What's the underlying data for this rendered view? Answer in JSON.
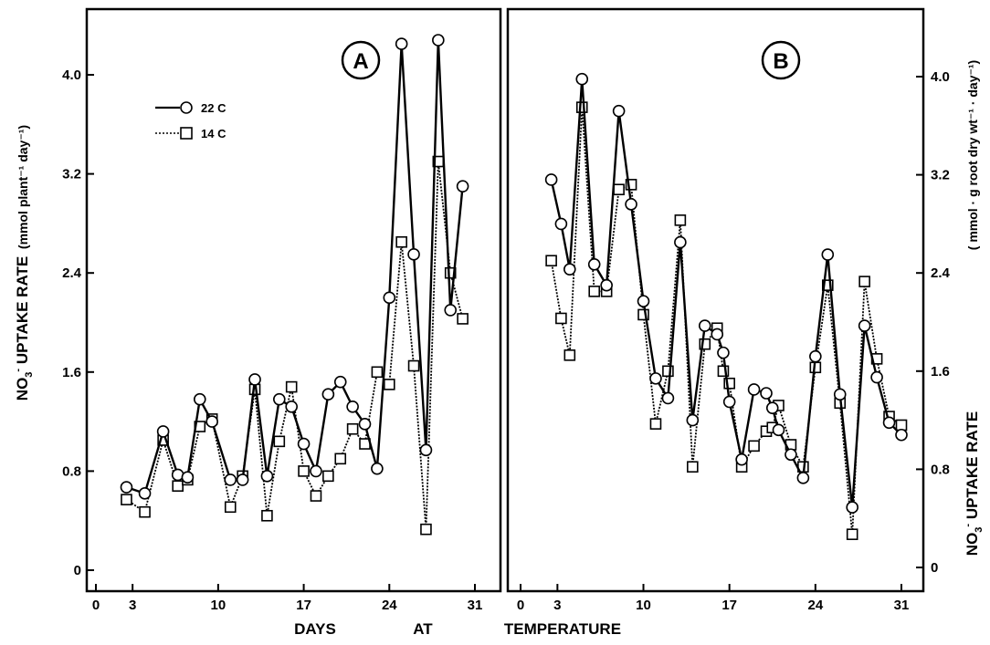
{
  "figure": {
    "xlabel_parts": [
      "DAYS",
      "AT",
      "TEMPERATURE"
    ],
    "legend": [
      {
        "label": "22 C",
        "marker": "circle",
        "style": "solid"
      },
      {
        "label": "14 C",
        "marker": "square",
        "style": "dotted"
      }
    ],
    "colors": {
      "line": "#000000",
      "background": "#ffffff"
    }
  },
  "chart_data": [
    {
      "type": "line",
      "panel": "A",
      "ylabel_prefix": "NO",
      "ylabel_sub": "3",
      "ylabel_sup": "-",
      "ylabel_main": " UPTAKE RATE",
      "ylabel_units": "(mmol plant⁻¹ day⁻¹)",
      "xlim": [
        0,
        31
      ],
      "ylim": [
        0,
        4.0
      ],
      "x_ticks": [
        0,
        3,
        10,
        17,
        24,
        31
      ],
      "y_ticks": [
        0,
        0.8,
        1.6,
        2.4,
        3.2,
        4.0
      ],
      "y_tick_labels": [
        "0",
        "0.8",
        "1.6",
        "2.4",
        "3.2",
        "4.0"
      ],
      "series": [
        {
          "name": "22 C",
          "marker": "circle",
          "x": [
            2.5,
            4,
            5.5,
            6.7,
            7.5,
            8.5,
            9.5,
            11,
            12,
            13,
            14,
            15,
            16,
            17,
            18,
            19,
            20,
            21,
            22,
            23,
            24,
            25,
            26,
            27,
            28,
            29,
            30
          ],
          "y": [
            0.67,
            0.62,
            1.12,
            0.77,
            0.75,
            1.38,
            1.2,
            0.73,
            0.73,
            1.54,
            0.76,
            1.38,
            1.32,
            1.02,
            0.8,
            1.42,
            1.52,
            1.32,
            1.18,
            0.82,
            2.2,
            4.25,
            2.55,
            0.97,
            4.28,
            2.1,
            3.1
          ]
        },
        {
          "name": "14 C",
          "marker": "square",
          "x": [
            2.5,
            4,
            5.5,
            6.7,
            7.5,
            8.5,
            9.5,
            11,
            12,
            13,
            14,
            15,
            16,
            17,
            18,
            19,
            20,
            21,
            22,
            23,
            24,
            25,
            26,
            27,
            28,
            29,
            30
          ],
          "y": [
            0.57,
            0.47,
            1.05,
            0.68,
            0.73,
            1.16,
            1.22,
            0.51,
            0.76,
            1.46,
            0.44,
            1.04,
            1.48,
            0.8,
            0.6,
            0.76,
            0.9,
            1.14,
            1.02,
            1.6,
            1.5,
            2.65,
            1.65,
            0.33,
            3.3,
            2.4,
            2.03
          ]
        }
      ]
    },
    {
      "type": "line",
      "panel": "B",
      "ylabel_prefix": "NO",
      "ylabel_sub": "3",
      "ylabel_sup": "-",
      "ylabel_main": " UPTAKE RATE",
      "ylabel_units": "( mmol · g root dry wt⁻¹ · day⁻¹)",
      "xlim": [
        0,
        31
      ],
      "ylim": [
        0,
        4.0
      ],
      "x_ticks": [
        0,
        3,
        10,
        17,
        24,
        31
      ],
      "y_ticks": [
        0,
        0.8,
        1.6,
        2.4,
        3.2,
        4.0
      ],
      "y_tick_labels": [
        "0",
        "0.8",
        "1.6",
        "2.4",
        "3.2",
        "4.0"
      ],
      "series": [
        {
          "name": "22 C",
          "marker": "circle",
          "x": [
            2.5,
            3.3,
            4,
            5,
            6,
            7,
            8,
            9,
            10,
            11,
            12,
            13,
            14,
            15,
            16,
            16.5,
            17,
            18,
            19,
            20,
            20.5,
            21,
            22,
            23,
            24,
            25,
            26,
            27,
            28,
            29,
            30,
            31
          ],
          "y": [
            3.16,
            2.8,
            2.43,
            3.98,
            2.47,
            2.3,
            3.72,
            2.96,
            2.17,
            1.54,
            1.38,
            2.65,
            1.2,
            1.97,
            1.9,
            1.75,
            1.35,
            0.88,
            1.45,
            1.42,
            1.3,
            1.12,
            0.92,
            0.73,
            1.72,
            2.55,
            1.41,
            0.49,
            1.97,
            1.55,
            1.18,
            1.08
          ]
        },
        {
          "name": "14 C",
          "marker": "square",
          "x": [
            2.5,
            3.3,
            4,
            5,
            6,
            7,
            8,
            9,
            10,
            11,
            12,
            13,
            14,
            15,
            16,
            16.5,
            17,
            18,
            19,
            20,
            20.5,
            21,
            22,
            23,
            24,
            25,
            26,
            27,
            28,
            29,
            30,
            31
          ],
          "y": [
            2.5,
            2.03,
            1.73,
            3.75,
            2.25,
            2.25,
            3.08,
            3.12,
            2.06,
            1.17,
            1.6,
            2.83,
            0.82,
            1.82,
            1.95,
            1.6,
            1.5,
            0.82,
            0.99,
            1.11,
            1.14,
            1.32,
            1.0,
            0.82,
            1.63,
            2.3,
            1.34,
            0.27,
            2.33,
            1.7,
            1.23,
            1.16
          ]
        }
      ]
    }
  ]
}
